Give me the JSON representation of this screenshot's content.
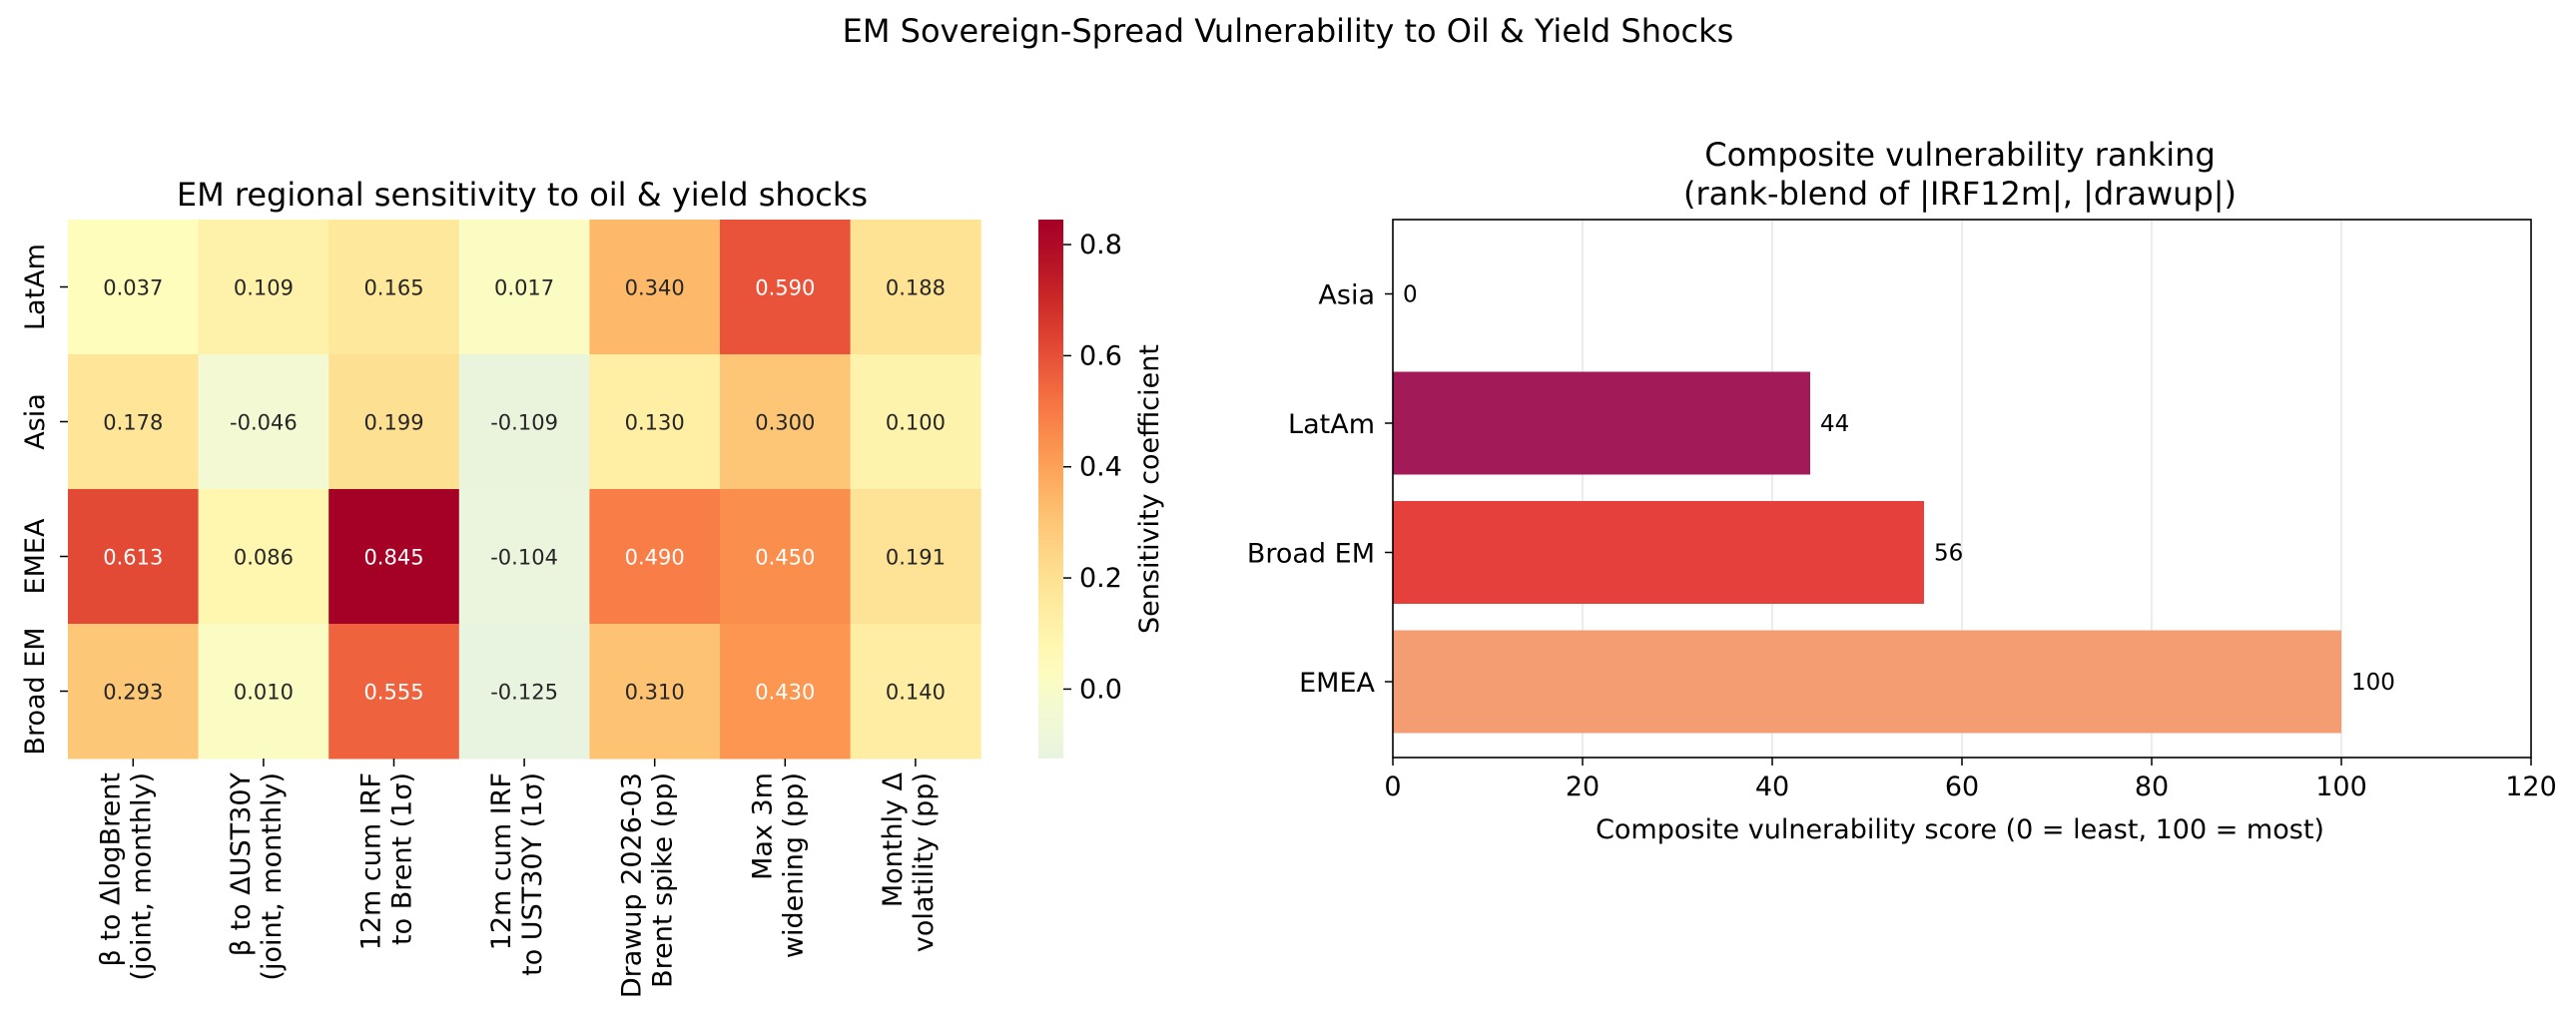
{
  "suptitle": "EM Sovereign-Spread Vulnerability to Oil & Yield Shocks",
  "colors": {
    "colormap": "YlOrRd-like (light green-cream at low, dark red at high)",
    "bar_colors": [
      "#f49d72",
      "#e6403d",
      "#a31a59"
    ]
  },
  "chart_data": [
    {
      "type": "heatmap",
      "title": "EM regional sensitivity to oil & yield shocks",
      "rows": [
        "LatAm",
        "Asia",
        "EMEA",
        "Broad EM"
      ],
      "columns": [
        [
          "β to ΔlogBrent",
          "(joint, monthly)"
        ],
        [
          "β to ΔUST30Y",
          "(joint, monthly)"
        ],
        [
          "12m cum IRF",
          "to Brent (1σ)"
        ],
        [
          "12m cum IRF",
          "to UST30Y (1σ)"
        ],
        [
          "Drawup 2026-03",
          "Brent spike (pp)"
        ],
        [
          "Max 3m",
          "widening (pp)"
        ],
        [
          "Monthly Δ",
          "volatility (pp)"
        ]
      ],
      "values": [
        [
          0.037,
          0.109,
          0.165,
          0.017,
          0.34,
          0.59,
          0.188
        ],
        [
          0.178,
          -0.046,
          0.199,
          -0.109,
          0.13,
          0.3,
          0.1
        ],
        [
          0.613,
          0.086,
          0.845,
          -0.104,
          0.49,
          0.45,
          0.191
        ],
        [
          0.293,
          0.01,
          0.555,
          -0.125,
          0.31,
          0.43,
          0.14
        ]
      ],
      "value_labels": [
        [
          "0.037",
          "0.109",
          "0.165",
          "0.017",
          "0.340",
          "0.590",
          "0.188"
        ],
        [
          "0.178",
          "-0.046",
          "0.199",
          "-0.109",
          "0.130",
          "0.300",
          "0.100"
        ],
        [
          "0.613",
          "0.086",
          "0.845",
          "-0.104",
          "0.490",
          "0.450",
          "0.191"
        ],
        [
          "0.293",
          "0.010",
          "0.555",
          "-0.125",
          "0.310",
          "0.430",
          "0.140"
        ]
      ],
      "colorbar": {
        "label": "Sensitivity coefficient",
        "range": [
          -0.125,
          0.845
        ],
        "ticks": [
          0.0,
          0.2,
          0.4,
          0.6,
          0.8
        ],
        "tick_labels": [
          "0.0",
          "0.2",
          "0.4",
          "0.6",
          "0.8"
        ]
      }
    },
    {
      "type": "bar",
      "orientation": "horizontal",
      "title": [
        "Composite vulnerability ranking",
        "(rank-blend of |IRF12m|, |drawup|)"
      ],
      "categories": [
        "EMEA",
        "Broad EM",
        "LatAm",
        "Asia"
      ],
      "values": [
        100,
        56,
        44,
        0
      ],
      "value_labels": [
        "100",
        "56",
        "44",
        "0"
      ],
      "xlabel": "Composite vulnerability score (0 = least, 100 = most)",
      "xlim": [
        0,
        120
      ],
      "xticks": [
        0,
        20,
        40,
        60,
        80,
        100,
        120
      ],
      "xtick_labels": [
        "0",
        "20",
        "40",
        "60",
        "80",
        "100",
        "120"
      ],
      "grid": "vertical",
      "legend": "none"
    }
  ]
}
